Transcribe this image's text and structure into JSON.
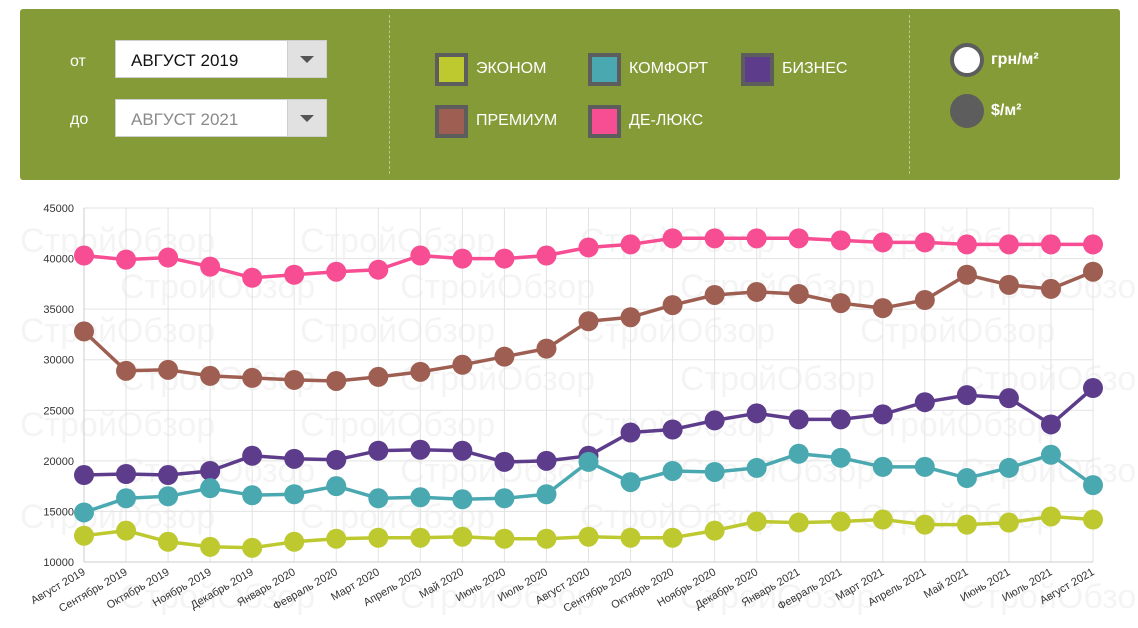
{
  "filters": {
    "from_label": "от",
    "to_label": "до",
    "from_value": "АВГУСТ 2019",
    "to_value": "АВГУСТ 2021"
  },
  "legend": [
    {
      "label": "ЭКОНОМ",
      "color": "#bdc92f"
    },
    {
      "label": "КОМФОРТ",
      "color": "#4aa8b1"
    },
    {
      "label": "БИЗНЕС",
      "color": "#5d3d8b"
    },
    {
      "label": "ПРЕМИУМ",
      "color": "#9e5f52"
    },
    {
      "label": "ДЕ-ЛЮКС",
      "color": "#f64d93"
    }
  ],
  "units": {
    "uah": "грн/м²",
    "usd": "$/м²"
  },
  "watermark": "СтройОбзор",
  "chart_data": {
    "type": "line",
    "title": "",
    "xlabel": "",
    "ylabel": "",
    "ylim": [
      10000,
      45000
    ],
    "yticks": [
      10000,
      15000,
      20000,
      25000,
      30000,
      35000,
      40000,
      45000
    ],
    "grid": true,
    "categories": [
      "Август 2019",
      "Сентябрь 2019",
      "Октябрь 2019",
      "Ноябрь 2019",
      "Декабрь 2019",
      "Январь 2020",
      "Февраль 2020",
      "Март 2020",
      "Апрель 2020",
      "Май 2020",
      "Июнь 2020",
      "Июль 2020",
      "Август 2020",
      "Сентябрь 2020",
      "Октябрь 2020",
      "Ноябрь 2020",
      "Декабрь 2020",
      "Январь 2021",
      "Февраль 2021",
      "Март 2021",
      "Апрель 2021",
      "Май 2021",
      "Июнь 2021",
      "Июль 2021",
      "Август 2021"
    ],
    "series": [
      {
        "name": "ДЕ-ЛЮКС",
        "color": "#f64d93",
        "values": [
          40300,
          39900,
          40100,
          39200,
          38100,
          38400,
          38700,
          38900,
          40300,
          40000,
          40000,
          40300,
          41100,
          41400,
          42000,
          42000,
          42000,
          42000,
          41800,
          41600,
          41600,
          41400,
          41400,
          41400,
          41400
        ]
      },
      {
        "name": "ПРЕМИУМ",
        "color": "#9e5f52",
        "values": [
          32800,
          28900,
          29000,
          28400,
          28200,
          28000,
          27900,
          28300,
          28800,
          29500,
          30300,
          31100,
          33800,
          34200,
          35400,
          36400,
          36700,
          36500,
          35600,
          35100,
          35900,
          38400,
          37400,
          37000,
          38700
        ]
      },
      {
        "name": "БИЗНЕС",
        "color": "#5d3d8b",
        "values": [
          18600,
          18700,
          18600,
          19000,
          20500,
          20200,
          20100,
          21000,
          21100,
          21000,
          19900,
          20000,
          20500,
          22800,
          23100,
          24000,
          24700,
          24100,
          24100,
          24600,
          25800,
          26500,
          26200,
          23600,
          27200
        ]
      },
      {
        "name": "КОМФОРТ",
        "color": "#4aa8b1",
        "values": [
          14900,
          16300,
          16500,
          17300,
          16600,
          16700,
          17500,
          16300,
          16400,
          16200,
          16300,
          16700,
          19900,
          17900,
          19000,
          18900,
          19300,
          20700,
          20300,
          19400,
          19400,
          18300,
          19300,
          20600,
          17600
        ]
      },
      {
        "name": "ЭКОНОМ",
        "color": "#bdc92f",
        "values": [
          12600,
          13100,
          12000,
          11500,
          11400,
          12000,
          12300,
          12400,
          12400,
          12500,
          12300,
          12300,
          12500,
          12400,
          12400,
          13100,
          14000,
          13900,
          14000,
          14200,
          13700,
          13700,
          13900,
          14500,
          14200
        ]
      }
    ]
  }
}
